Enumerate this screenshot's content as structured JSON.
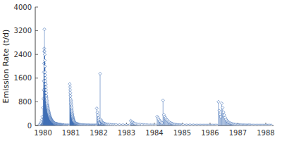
{
  "chart_data": {
    "type": "stem",
    "ylabel": "Emission Rate (t/d)",
    "marker": "diamond",
    "xlim": [
      1979.72,
      1988.28
    ],
    "xticks": [
      1980,
      1981,
      1982,
      1983,
      1984,
      1985,
      1986,
      1987,
      1988
    ],
    "ylim": [
      0,
      4000
    ],
    "yticks": [
      0,
      800,
      1600,
      2400,
      3200,
      4000
    ],
    "x": [
      1979.88,
      1979.9,
      1979.92,
      1979.94,
      1979.96,
      1979.98,
      1980.0,
      1980.01,
      1980.02,
      1980.025,
      1980.03,
      1980.035,
      1980.04,
      1980.045,
      1980.05,
      1980.055,
      1980.06,
      1980.065,
      1980.07,
      1980.075,
      1980.08,
      1980.085,
      1980.09,
      1980.095,
      1980.1,
      1980.105,
      1980.11,
      1980.115,
      1980.12,
      1980.125,
      1980.13,
      1980.135,
      1980.14,
      1980.145,
      1980.15,
      1980.155,
      1980.16,
      1980.165,
      1980.17,
      1980.175,
      1980.18,
      1980.185,
      1980.19,
      1980.195,
      1980.2,
      1980.205,
      1980.21,
      1980.215,
      1980.22,
      1980.225,
      1980.23,
      1980.235,
      1980.24,
      1980.245,
      1980.25,
      1980.255,
      1980.26,
      1980.265,
      1980.27,
      1980.275,
      1980.28,
      1980.285,
      1980.29,
      1980.295,
      1980.3,
      1980.305,
      1980.31,
      1980.315,
      1980.32,
      1980.325,
      1980.33,
      1980.335,
      1980.34,
      1980.345,
      1980.35,
      1980.355,
      1980.36,
      1980.365,
      1980.37,
      1980.375,
      1980.38,
      1980.385,
      1980.39,
      1980.395,
      1980.4,
      1980.41,
      1980.42,
      1980.43,
      1980.44,
      1980.45,
      1980.46,
      1980.47,
      1980.48,
      1980.49,
      1980.5,
      1980.51,
      1980.52,
      1980.53,
      1980.54,
      1980.55,
      1980.56,
      1980.57,
      1980.58,
      1980.59,
      1980.6,
      1980.61,
      1980.62,
      1980.63,
      1980.64,
      1980.65,
      1980.66,
      1980.67,
      1980.68,
      1980.69,
      1980.7,
      1980.71,
      1980.72,
      1980.73,
      1980.74,
      1980.75,
      1980.76,
      1980.78,
      1980.8,
      1980.82,
      1980.84,
      1980.86,
      1980.88,
      1980.9,
      1980.92,
      1980.94,
      1980.96,
      1980.97,
      1980.975,
      1980.98,
      1980.985,
      1980.99,
      1981.0,
      1981.005,
      1981.01,
      1981.015,
      1981.02,
      1981.025,
      1981.03,
      1981.035,
      1981.04,
      1981.045,
      1981.05,
      1981.055,
      1981.06,
      1981.065,
      1981.07,
      1981.075,
      1981.08,
      1981.085,
      1981.09,
      1981.095,
      1981.1,
      1981.11,
      1981.12,
      1981.13,
      1981.14,
      1981.15,
      1981.16,
      1981.17,
      1981.18,
      1981.19,
      1981.2,
      1981.21,
      1981.22,
      1981.23,
      1981.24,
      1981.25,
      1981.26,
      1981.27,
      1981.28,
      1981.29,
      1981.3,
      1981.32,
      1981.34,
      1981.36,
      1981.38,
      1981.4,
      1981.42,
      1981.44,
      1981.46,
      1981.48,
      1981.5,
      1981.52,
      1981.54,
      1981.56,
      1981.58,
      1981.6,
      1981.62,
      1981.64,
      1981.66,
      1981.68,
      1981.7,
      1981.72,
      1981.74,
      1981.76,
      1981.78,
      1981.8,
      1981.82,
      1981.84,
      1981.86,
      1981.88,
      1981.9,
      1981.92,
      1981.93,
      1981.95,
      1981.97,
      1981.99,
      1982.0,
      1982.01,
      1982.02,
      1982.03,
      1982.04,
      1982.05,
      1982.07,
      1982.09,
      1982.11,
      1982.13,
      1982.15,
      1982.17,
      1982.19,
      1982.21,
      1982.23,
      1982.25,
      1982.27,
      1982.3,
      1982.33,
      1982.36,
      1982.4,
      1982.44,
      1982.48,
      1982.52,
      1982.56,
      1982.6,
      1982.65,
      1982.7,
      1982.75,
      1982.8,
      1982.85,
      1982.9,
      1982.95,
      1983.0,
      1983.05,
      1983.1,
      1983.15,
      1983.18,
      1983.21,
      1983.24,
      1983.27,
      1983.3,
      1983.35,
      1983.4,
      1983.45,
      1983.5,
      1983.55,
      1983.6,
      1983.65,
      1983.7,
      1983.75,
      1983.8,
      1983.85,
      1983.9,
      1983.95,
      1984.0,
      1984.05,
      1984.1,
      1984.13,
      1984.16,
      1984.19,
      1984.22,
      1984.25,
      1984.28,
      1984.31,
      1984.34,
      1984.37,
      1984.4,
      1984.43,
      1984.46,
      1984.49,
      1984.52,
      1984.55,
      1984.58,
      1984.61,
      1984.64,
      1984.67,
      1984.7,
      1984.73,
      1984.76,
      1984.79,
      1984.82,
      1984.85,
      1984.88,
      1984.91,
      1984.94,
      1984.97,
      1985.0,
      1985.05,
      1985.1,
      1985.15,
      1985.2,
      1985.25,
      1985.3,
      1985.35,
      1985.4,
      1985.45,
      1985.5,
      1985.55,
      1985.6,
      1985.65,
      1985.7,
      1985.75,
      1985.8,
      1985.85,
      1985.9,
      1985.95,
      1986.0,
      1986.05,
      1986.1,
      1986.15,
      1986.2,
      1986.25,
      1986.3,
      1986.33,
      1986.36,
      1986.39,
      1986.42,
      1986.45,
      1986.48,
      1986.51,
      1986.54,
      1986.57,
      1986.6,
      1986.63,
      1986.66,
      1986.69,
      1986.72,
      1986.75,
      1986.78,
      1986.81,
      1986.84,
      1986.87,
      1986.9,
      1986.93,
      1986.96,
      1986.99,
      1987.02,
      1987.05,
      1987.08,
      1987.11,
      1987.14,
      1987.17,
      1987.2,
      1987.23,
      1987.26,
      1987.29,
      1987.32,
      1987.35,
      1987.38,
      1987.41,
      1987.44,
      1987.47,
      1987.5,
      1987.55,
      1987.6,
      1987.65,
      1987.7,
      1987.75,
      1987.8,
      1987.85,
      1987.9,
      1987.95,
      1988.0,
      1988.05,
      1988.1,
      1988.15,
      1988.2
    ],
    "values": [
      30,
      50,
      80,
      120,
      200,
      300,
      600,
      900,
      1200,
      1500,
      1800,
      2100,
      2500,
      2600,
      3250,
      2500,
      2400,
      2200,
      2000,
      1800,
      1700,
      1600,
      1500,
      1400,
      1400,
      1300,
      1200,
      1100,
      1000,
      950,
      900,
      850,
      800,
      750,
      700,
      680,
      650,
      620,
      600,
      580,
      550,
      520,
      500,
      480,
      460,
      440,
      420,
      400,
      380,
      360,
      350,
      330,
      310,
      300,
      280,
      270,
      260,
      250,
      240,
      230,
      220,
      210,
      200,
      195,
      190,
      180,
      170,
      160,
      155,
      150,
      145,
      140,
      135,
      130,
      125,
      120,
      115,
      110,
      105,
      100,
      95,
      90,
      88,
      85,
      82,
      78,
      75,
      72,
      68,
      65,
      62,
      58,
      55,
      52,
      50,
      48,
      45,
      42,
      40,
      38,
      36,
      34,
      32,
      30,
      28,
      26,
      25,
      24,
      22,
      20,
      18,
      16,
      15,
      14,
      12,
      11,
      10,
      9,
      8,
      7,
      6,
      5,
      4,
      4,
      3,
      3,
      2,
      2,
      2,
      2,
      1400,
      1300,
      1200,
      1100,
      1000,
      900,
      850,
      800,
      750,
      700,
      650,
      600,
      550,
      500,
      460,
      420,
      390,
      360,
      330,
      300,
      270,
      250,
      230,
      210,
      190,
      175,
      160,
      145,
      130,
      120,
      110,
      100,
      90,
      82,
      75,
      68,
      62,
      58,
      54,
      50,
      46,
      42,
      38,
      35,
      32,
      30,
      28,
      25,
      22,
      20,
      18,
      16,
      14,
      12,
      10,
      9,
      8,
      7,
      6,
      5,
      5,
      4,
      4,
      3,
      3,
      3,
      2,
      2,
      2,
      2,
      2,
      2,
      2,
      2,
      2,
      2,
      2,
      2,
      580,
      450,
      350,
      250,
      180,
      140,
      110,
      90,
      70,
      1750,
      200,
      160,
      130,
      110,
      90,
      78,
      68,
      60,
      54,
      48,
      44,
      40,
      36,
      32,
      28,
      24,
      20,
      18,
      16,
      14,
      12,
      10,
      9,
      8,
      7,
      6,
      5,
      5,
      4,
      4,
      160,
      130,
      110,
      90,
      75,
      60,
      50,
      42,
      36,
      30,
      26,
      22,
      18,
      14,
      12,
      10,
      9,
      8,
      7,
      6,
      5,
      300,
      250,
      200,
      160,
      130,
      100,
      85,
      850,
      360,
      300,
      250,
      210,
      180,
      150,
      120,
      100,
      85,
      70,
      58,
      48,
      40,
      34,
      28,
      24,
      20,
      18,
      15,
      12,
      10,
      8,
      7,
      6,
      5,
      4,
      4,
      3,
      3,
      3,
      3,
      2,
      2,
      2,
      2,
      2,
      2,
      2,
      2,
      2,
      2,
      2,
      2,
      2,
      2,
      2,
      2,
      2,
      800,
      500,
      380,
      290,
      750,
      600,
      450,
      350,
      270,
      210,
      170,
      140,
      115,
      95,
      80,
      68,
      58,
      50,
      42,
      36,
      30,
      26,
      22,
      18,
      15,
      12,
      10,
      9,
      8,
      7,
      6,
      5,
      5,
      4,
      4,
      4,
      3,
      3,
      3,
      3,
      3,
      2,
      2,
      2,
      2,
      2,
      2,
      2,
      2,
      2,
      2,
      2,
      2,
      2,
      2
    ]
  }
}
